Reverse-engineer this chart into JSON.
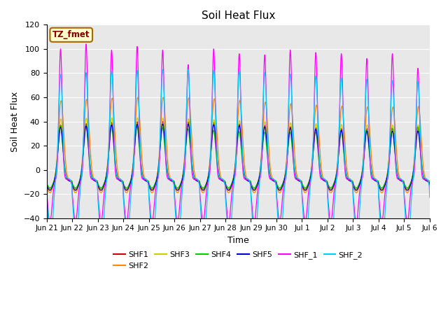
{
  "title": "Soil Heat Flux",
  "ylabel": "Soil Heat Flux",
  "xlabel": "Time",
  "ylim": [
    -40,
    120
  ],
  "bg_color": "#e8e8e8",
  "series": [
    "SHF1",
    "SHF2",
    "SHF3",
    "SHF4",
    "SHF5",
    "SHF_1",
    "SHF_2"
  ],
  "colors": [
    "#cc0000",
    "#ff8800",
    "#cccc00",
    "#00cc00",
    "#0000cc",
    "#ff00ff",
    "#00ccff"
  ],
  "annotation_text": "TZ_fmet",
  "annotation_bg": "#ffffcc",
  "annotation_border": "#aa6600",
  "annotation_text_color": "#880000",
  "xtick_labels": [
    "Jun 21",
    "Jun 22",
    "Jun 23",
    "Jun 24",
    "Jun 25",
    "Jun 26",
    "Jun 27",
    "Jun 28",
    "Jun 29",
    "Jun 30",
    "Jul 1",
    "Jul 2",
    "Jul 3",
    "Jul 4",
    "Jul 5",
    "Jul 6"
  ],
  "n_days": 15,
  "dt_hours": 0.25
}
